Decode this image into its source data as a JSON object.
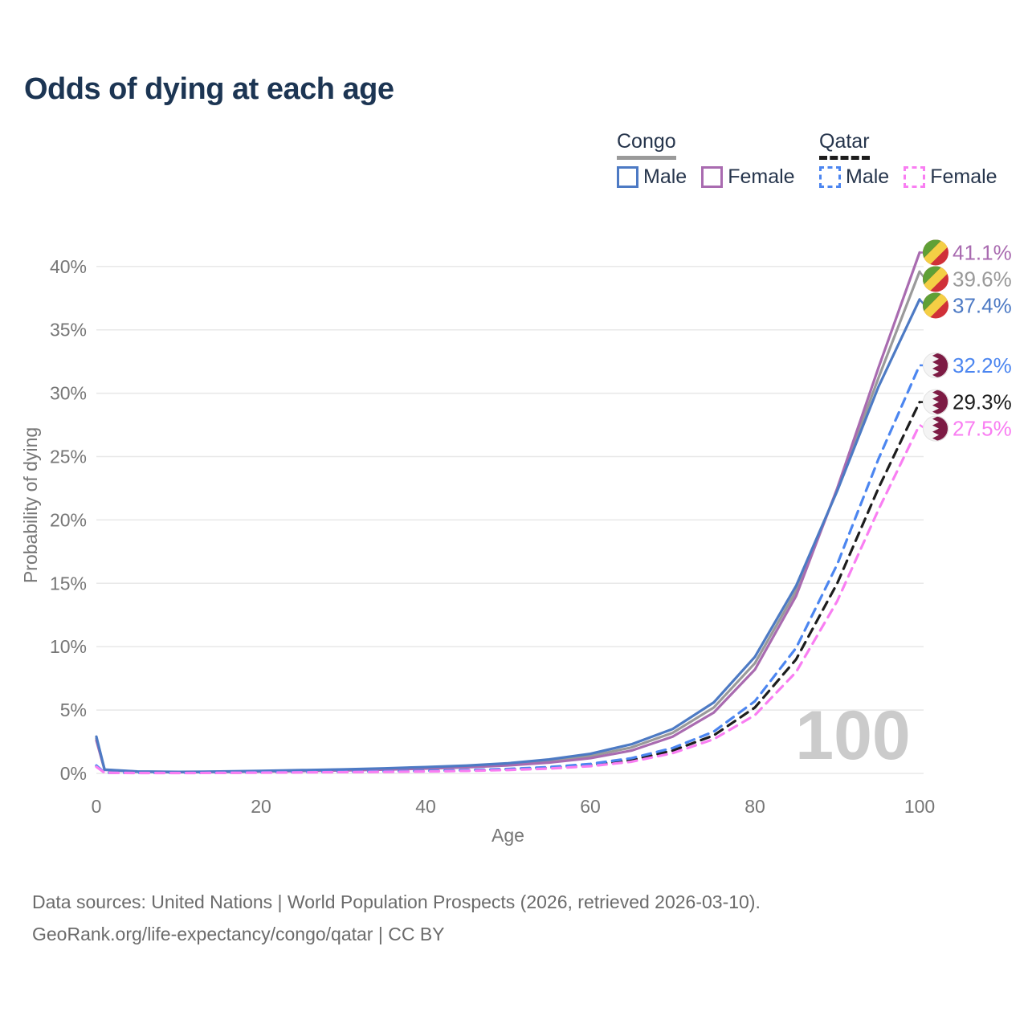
{
  "title": "Odds of dying at each age",
  "legend": {
    "groups": [
      {
        "name": "Congo",
        "line_style": "solid",
        "rule_color": "#9a9a9a",
        "items": [
          {
            "label": "Male",
            "color": "#4d7ac4"
          },
          {
            "label": "Female",
            "color": "#a96bb0"
          }
        ]
      },
      {
        "name": "Qatar",
        "line_style": "dashed",
        "rule_color": "#1d1d1d",
        "items": [
          {
            "label": "Male",
            "color": "#4c86f0"
          },
          {
            "label": "Female",
            "color": "#f97ef2"
          }
        ]
      }
    ]
  },
  "chart_data": {
    "type": "line",
    "title": "Odds of dying at each age",
    "xlabel": "Age",
    "ylabel": "Probability of dying",
    "xlim": [
      0,
      100
    ],
    "ylim_pct": [
      0,
      42
    ],
    "grid": "horizontal-only",
    "legend_position": "top-right",
    "watermark": "100",
    "xticks": [
      0,
      20,
      40,
      60,
      80,
      100
    ],
    "xtick_labels": [
      "0",
      "20",
      "40",
      "60",
      "80",
      "100"
    ],
    "yticks_pct": [
      0,
      5,
      10,
      15,
      20,
      25,
      30,
      35,
      40
    ],
    "ytick_labels": [
      "0%",
      "5%",
      "10%",
      "15%",
      "20%",
      "25%",
      "30%",
      "35%",
      "40%"
    ],
    "x": [
      0,
      1,
      5,
      10,
      15,
      20,
      25,
      30,
      35,
      40,
      45,
      50,
      55,
      60,
      65,
      70,
      75,
      80,
      85,
      90,
      95,
      100
    ],
    "series": [
      {
        "name": "Congo Both sexes",
        "country": "Congo",
        "sex": "both",
        "style": "solid",
        "color": "#9a9a9a",
        "end_label": "39.6%",
        "values_pct": [
          2.75,
          0.29,
          0.14,
          0.11,
          0.13,
          0.17,
          0.22,
          0.28,
          0.35,
          0.44,
          0.55,
          0.71,
          0.97,
          1.37,
          2.05,
          3.2,
          5.2,
          8.7,
          14.4,
          22.4,
          31.2,
          39.6
        ]
      },
      {
        "name": "Congo Female",
        "country": "Congo",
        "sex": "female",
        "style": "solid",
        "color": "#a96bb0",
        "end_label": "41.1%",
        "values_pct": [
          2.6,
          0.28,
          0.13,
          0.1,
          0.12,
          0.15,
          0.19,
          0.24,
          0.3,
          0.38,
          0.48,
          0.63,
          0.85,
          1.2,
          1.8,
          2.9,
          4.8,
          8.2,
          14.0,
          22.5,
          32.0,
          41.1
        ]
      },
      {
        "name": "Congo Male",
        "country": "Congo",
        "sex": "male",
        "style": "solid",
        "color": "#4d7ac4",
        "end_label": "37.4%",
        "values_pct": [
          2.9,
          0.3,
          0.15,
          0.12,
          0.15,
          0.2,
          0.26,
          0.32,
          0.4,
          0.5,
          0.62,
          0.8,
          1.1,
          1.55,
          2.3,
          3.5,
          5.6,
          9.2,
          14.8,
          22.3,
          30.5,
          37.4
        ]
      },
      {
        "name": "Qatar Both sexes",
        "country": "Qatar",
        "sex": "both",
        "style": "dashed",
        "color": "#1d1d1d",
        "end_label": "29.3%",
        "values_pct": [
          0.57,
          0.055,
          0.035,
          0.035,
          0.05,
          0.08,
          0.1,
          0.12,
          0.14,
          0.18,
          0.23,
          0.31,
          0.44,
          0.66,
          1.05,
          1.8,
          3.0,
          5.2,
          9.0,
          15.0,
          22.5,
          29.3
        ]
      },
      {
        "name": "Qatar Male",
        "country": "Qatar",
        "sex": "male",
        "style": "dashed",
        "color": "#4c86f0",
        "end_label": "32.2%",
        "values_pct": [
          0.62,
          0.06,
          0.04,
          0.04,
          0.06,
          0.09,
          0.11,
          0.13,
          0.16,
          0.2,
          0.26,
          0.35,
          0.5,
          0.75,
          1.2,
          2.0,
          3.3,
          5.7,
          9.9,
          16.5,
          24.8,
          32.2
        ]
      },
      {
        "name": "Qatar Female",
        "country": "Qatar",
        "sex": "female",
        "style": "dashed",
        "color": "#f97ef2",
        "end_label": "27.5%",
        "values_pct": [
          0.52,
          0.05,
          0.03,
          0.03,
          0.04,
          0.06,
          0.08,
          0.1,
          0.12,
          0.15,
          0.2,
          0.27,
          0.38,
          0.57,
          0.92,
          1.6,
          2.7,
          4.6,
          8.0,
          13.6,
          20.8,
          27.5
        ]
      }
    ],
    "flag_colors": {
      "congo": {
        "green": "#5fa036",
        "yellow": "#f4cf45",
        "red": "#d03038"
      },
      "qatar": {
        "maroon": "#7d1b44",
        "white": "#f4f4f4"
      }
    }
  },
  "footer": {
    "line1": "Data sources: United Nations | World Population Prospects (2026, retrieved 2026-03-10).",
    "line2": "GeoRank.org/life-expectancy/congo/qatar | CC BY"
  }
}
